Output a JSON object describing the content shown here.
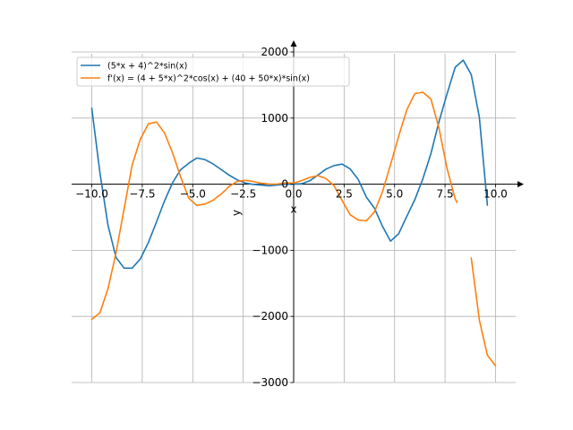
{
  "chart_data": {
    "type": "line",
    "title": "",
    "xlabel": "x",
    "ylabel": "y",
    "xlim": [
      -11,
      11
    ],
    "ylim": [
      -3000,
      2000
    ],
    "grid": true,
    "legend_position": "top-left",
    "x_ticks": [
      -10.0,
      -7.5,
      -5.0,
      -2.5,
      0.0,
      2.5,
      5.0,
      7.5,
      10.0
    ],
    "x_tick_labels": [
      "−10.0",
      "−7.5",
      "−5.0",
      "−2.5",
      "0.0",
      "2.5",
      "5.0",
      "7.5",
      "10.0"
    ],
    "y_ticks": [
      -3000,
      -2000,
      -1000,
      0,
      1000,
      2000
    ],
    "y_tick_labels": [
      "−3000",
      "−2000",
      "−1000",
      "0",
      "1000",
      "2000"
    ],
    "series": [
      {
        "name": "(5*x + 4)^2*sin(x)",
        "color": "#1f77b4",
        "x": [
          -10.0,
          -9.6,
          -9.2,
          -8.8,
          -8.4,
          -8.0,
          -7.6,
          -7.2,
          -6.8,
          -6.4,
          -6.0,
          -5.6,
          -5.2,
          -4.8,
          -4.4,
          -4.0,
          -3.6,
          -3.2,
          -2.8,
          -2.4,
          -2.0,
          -1.6,
          -1.2,
          -0.8,
          -0.4,
          0.0,
          0.4,
          0.8,
          1.2,
          1.6,
          2.0,
          2.4,
          2.8,
          3.2,
          3.6,
          4.0,
          4.4,
          4.8,
          5.2,
          5.6,
          6.0,
          6.4,
          6.8,
          7.2,
          7.6,
          8.0,
          8.4,
          8.8,
          9.2,
          9.6
        ],
        "values": [
          1150,
          175,
          -621,
          -1109,
          -1270,
          -1269,
          -1131,
          -884,
          -574,
          -255,
          22,
          218,
          317,
          396,
          372,
          308,
          223,
          137,
          66,
          18,
          -3,
          -13,
          -24,
          -12,
          -2,
          0,
          7,
          51,
          138,
          227,
          282,
          304,
          231,
          72,
          -195,
          -363,
          -637,
          -862,
          -751,
          -489,
          -234,
          81,
          462,
          944,
          1366,
          1768,
          1875,
          1656,
          1012,
          -318
        ]
      },
      {
        "name": "f'(x) = (4 + 5*x)^2*cos(x) + (40 + 50*x)*sin(x)",
        "color": "#ff7f0e",
        "x": [
          -10.0,
          -9.6,
          -9.2,
          -8.8,
          -8.4,
          -8.0,
          -7.6,
          -7.2,
          -6.8,
          -6.4,
          -6.0,
          -5.6,
          -5.2,
          -4.8,
          -4.4,
          -4.0,
          -3.6,
          -3.2,
          -2.8,
          -2.4,
          -2.0,
          -1.6,
          -1.2,
          -0.8,
          -0.4,
          0.0,
          0.4,
          0.8,
          1.2,
          1.6,
          2.0,
          2.4,
          2.8,
          3.2,
          3.6,
          4.0,
          4.4,
          4.8,
          5.2,
          5.6,
          6.0,
          6.4,
          6.8,
          7.2,
          7.6,
          8.0,
          8.1,
          null,
          8.8,
          9.2,
          9.6,
          10.0
        ],
        "values": [
          -2045,
          -1944,
          -1583,
          -1036,
          -376,
          290,
          679,
          912,
          941,
          777,
          476,
          111,
          -212,
          -321,
          -301,
          -244,
          -153,
          -35,
          44,
          58,
          40,
          14,
          2,
          3,
          21,
          16,
          54,
          103,
          129,
          86,
          -23,
          -246,
          -462,
          -542,
          -554,
          -421,
          -114,
          296,
          722,
          1122,
          1370,
          1390,
          1288,
          849,
          239,
          -222,
          -278,
          null,
          -1118,
          -2055,
          -2588,
          -2748
        ]
      }
    ]
  }
}
